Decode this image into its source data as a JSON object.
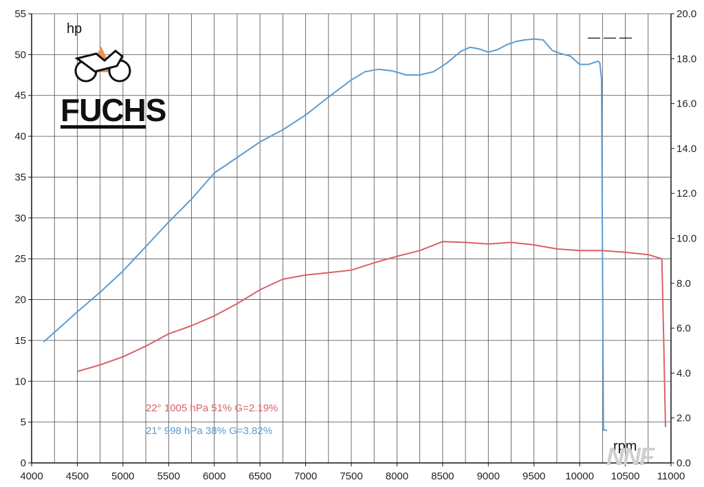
{
  "chart_data": {
    "type": "line",
    "xlabel": "rpm",
    "ylabel": "hp",
    "xlim": [
      4000,
      11000
    ],
    "ylim": [
      0,
      55
    ],
    "y2lim": [
      0,
      20
    ],
    "grid": true,
    "x_ticks": [
      "4000",
      "4500",
      "5000",
      "5500",
      "6000",
      "6500",
      "7000",
      "7500",
      "8000",
      "8500",
      "9000",
      "9500",
      "10000",
      "10500",
      "11000"
    ],
    "y_ticks": [
      "0",
      "5",
      "10",
      "15",
      "20",
      "25",
      "30",
      "35",
      "40",
      "45",
      "50",
      "55"
    ],
    "y2_ticks": [
      "0.0",
      "2.0",
      "4.0",
      "6.0",
      "8.0",
      "10.0",
      "12.0",
      "14.0",
      "16.0",
      "18.0",
      "20.0"
    ],
    "legend_placement": "top-right",
    "legend_dash": "— — —",
    "series": [
      {
        "color": "#5b9bd0",
        "condition_label": "21°  998 hPa  38%    G=3.82%",
        "x": [
          4130,
          4300,
          4500,
          4750,
          5000,
          5250,
          5500,
          5750,
          6000,
          6250,
          6500,
          6750,
          7000,
          7250,
          7500,
          7650,
          7800,
          7950,
          8100,
          8250,
          8400,
          8550,
          8700,
          8800,
          8900,
          9000,
          9100,
          9200,
          9300,
          9400,
          9500,
          9600,
          9700,
          9800,
          9900,
          10000,
          10100,
          10200,
          10220,
          10240,
          10260,
          10300
        ],
        "y": [
          14.8,
          16.5,
          18.5,
          20.9,
          23.5,
          26.5,
          29.5,
          32.3,
          35.5,
          37.4,
          39.3,
          40.8,
          42.6,
          44.8,
          46.9,
          47.9,
          48.2,
          48.0,
          47.5,
          47.5,
          47.9,
          49.0,
          50.4,
          50.9,
          50.7,
          50.3,
          50.6,
          51.2,
          51.6,
          51.8,
          51.9,
          51.8,
          50.5,
          50.1,
          49.8,
          48.8,
          48.8,
          49.2,
          49.0,
          47.0,
          4.0,
          4.0
        ]
      },
      {
        "color": "#d9606a",
        "condition_label": "22°  1005 hPa  51%    G=2.19%",
        "x": [
          4500,
          4750,
          5000,
          5250,
          5500,
          5750,
          6000,
          6250,
          6500,
          6750,
          7000,
          7250,
          7500,
          7750,
          8000,
          8250,
          8500,
          8750,
          9000,
          9250,
          9500,
          9750,
          10000,
          10250,
          10500,
          10750,
          10900,
          10920,
          10940
        ],
        "y": [
          11.2,
          12.0,
          13.0,
          14.3,
          15.8,
          16.8,
          18.0,
          19.5,
          21.2,
          22.5,
          23.0,
          23.3,
          23.6,
          24.5,
          25.3,
          26.0,
          27.1,
          27.0,
          26.8,
          27.0,
          26.7,
          26.2,
          26.0,
          26.0,
          25.8,
          25.5,
          25.0,
          15.0,
          4.4
        ]
      }
    ]
  },
  "units": {
    "y_unit": "hp",
    "x_unit": "rpm"
  },
  "logo": {
    "text": "FUCHS",
    "accent_color": "#e9955a"
  },
  "watermark": {
    "text": "NNF"
  }
}
